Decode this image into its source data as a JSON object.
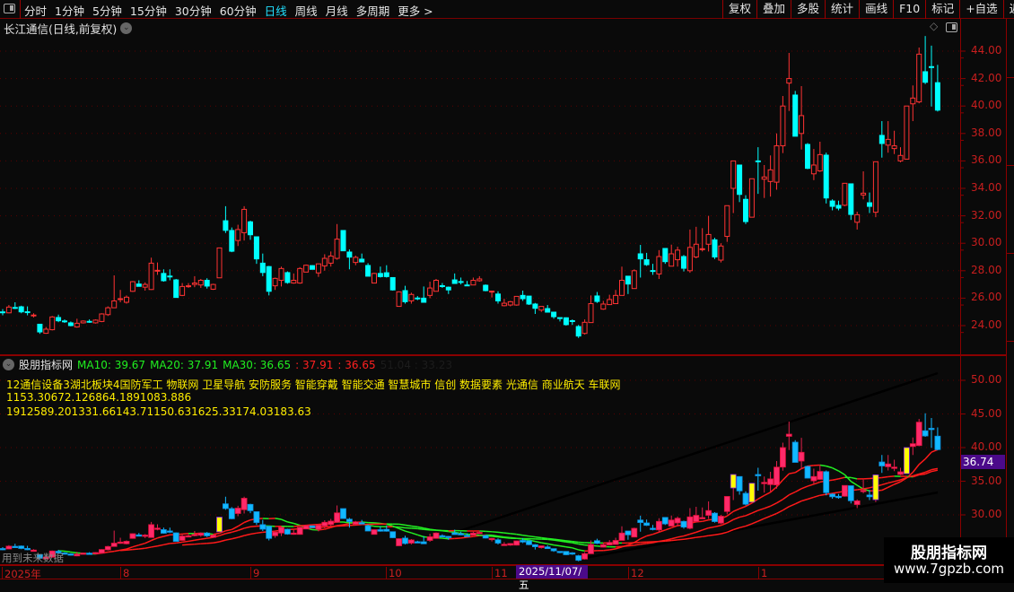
{
  "toolbar": {
    "tabs": [
      "分时",
      "1分钟",
      "5分钟",
      "15分钟",
      "30分钟",
      "60分钟",
      "日线",
      "周线",
      "月线",
      "多周期",
      "更多 >"
    ],
    "active_tab": "日线",
    "right_buttons": [
      "复权",
      "叠加",
      "多股",
      "统计",
      "画线",
      "F10",
      "标记",
      "+自选",
      "返回"
    ]
  },
  "main": {
    "title": "长江通信(日线,前复权)",
    "title_icon": "chevron-down-circle-icon",
    "corner_icons": [
      "diamond-icon",
      "panel-toggle-icon"
    ]
  },
  "sub": {
    "name": "股朋指标网",
    "ma10": "MA10: 39.67",
    "ma20": "MA20: 37.91",
    "ma30": "MA30: 36.65",
    "v1": ": 37.91",
    "v2": ": 36.65",
    "v3": "51.04 : 33.23",
    "line1": "12通信设备3湖北板块4国防军工 物联网 卫星导航 安防服务 智能穿戴 智能交通 智慧城市 信创 数据要素 光通信 商业航天 车联网",
    "line2": "1153.30672.126864.1891083.886",
    "line3": "1912589.201331.66143.71150.631625.33174.03183.63",
    "current_value": "36.74",
    "future_note": "用到未来数据"
  },
  "date_axis": {
    "labels": [
      "2025年",
      "8",
      "9",
      "10",
      "11",
      "12",
      "1"
    ],
    "cursor": "2025/11/07/五"
  },
  "watermark": {
    "title": "股朋指标网",
    "url": "www.7gpzb.com"
  },
  "colors": {
    "up": "#ff3333",
    "down": "#00ffff",
    "sub_up": "#ff2a6a",
    "sub_down": "#11b8ff",
    "highlight": "#ffff00",
    "ma": "#ff1a1a",
    "ma_falling": "#22ee22",
    "axis": "#c81e1e",
    "cursor_bg": "#4b0a8a"
  },
  "chart_data": [
    {
      "type": "candlestick",
      "title": "长江通信(日线,前复权)",
      "y_ticks": [
        "44.00",
        "42.00",
        "40.00",
        "38.00",
        "36.00",
        "34.00",
        "32.00",
        "30.00",
        "28.00",
        "26.00",
        "24.00"
      ],
      "ylim": [
        22.5,
        46
      ],
      "grid": true,
      "ohlc_fields": [
        "open",
        "high",
        "low",
        "close"
      ],
      "ohlc": [
        [
          25.0,
          25.2,
          24.75,
          24.99
        ],
        [
          24.93,
          25.5,
          24.9,
          25.35
        ],
        [
          25.32,
          25.7,
          25.2,
          25.3
        ],
        [
          25.37,
          25.45,
          24.9,
          25.0
        ],
        [
          25.01,
          25.4,
          24.75,
          25.0
        ],
        [
          24.75,
          24.9,
          24.6,
          24.77
        ],
        [
          24.1,
          24.1,
          23.4,
          23.54
        ],
        [
          23.44,
          23.9,
          23.4,
          23.74
        ],
        [
          23.7,
          24.7,
          23.65,
          24.63
        ],
        [
          24.59,
          24.8,
          24.25,
          24.35
        ],
        [
          24.34,
          24.45,
          24.2,
          24.33
        ],
        [
          24.2,
          24.3,
          23.95,
          24.0
        ],
        [
          23.9,
          24.5,
          23.85,
          24.17
        ],
        [
          24.2,
          24.38,
          24.15,
          24.33
        ],
        [
          24.31,
          24.45,
          24.2,
          24.3
        ],
        [
          24.2,
          24.45,
          24.15,
          24.4
        ],
        [
          24.3,
          24.9,
          24.25,
          24.85
        ],
        [
          24.8,
          25.4,
          24.7,
          25.3
        ],
        [
          25.3,
          27.66,
          25.3,
          25.8
        ],
        [
          25.95,
          26.6,
          25.7,
          25.96
        ],
        [
          25.7,
          26.2,
          25.6,
          26.07
        ],
        [
          26.5,
          27.25,
          26.45,
          27.2
        ],
        [
          27.03,
          27.3,
          26.86,
          26.86
        ],
        [
          26.8,
          27.15,
          26.55,
          27.0
        ],
        [
          26.63,
          28.95,
          26.6,
          28.55
        ],
        [
          28.02,
          28.6,
          27.7,
          28.03
        ],
        [
          27.8,
          28.1,
          27.2,
          27.27
        ],
        [
          27.61,
          28.1,
          27.3,
          27.6
        ],
        [
          27.33,
          27.4,
          26.05,
          26.05
        ],
        [
          26.2,
          27.1,
          26.15,
          26.85
        ],
        [
          26.88,
          27.1,
          26.75,
          26.9
        ],
        [
          27.0,
          27.6,
          26.8,
          27.1
        ],
        [
          26.96,
          27.4,
          26.75,
          27.3
        ],
        [
          27.3,
          27.45,
          26.7,
          26.88
        ],
        [
          26.65,
          27.05,
          26.6,
          27.0
        ],
        [
          27.48,
          29.66,
          27.48,
          29.66
        ],
        [
          31.64,
          32.7,
          30.75,
          30.94
        ],
        [
          30.93,
          31.15,
          29.35,
          29.42
        ],
        [
          30.2,
          31.35,
          29.8,
          31.0
        ],
        [
          30.77,
          32.7,
          30.2,
          32.47
        ],
        [
          31.56,
          31.65,
          30.25,
          30.62
        ],
        [
          30.47,
          30.47,
          28.5,
          28.86
        ],
        [
          28.55,
          29.25,
          27.6,
          27.87
        ],
        [
          28.3,
          28.35,
          26.2,
          26.5
        ],
        [
          26.9,
          27.5,
          26.6,
          27.44
        ],
        [
          27.3,
          28.3,
          26.85,
          28.16
        ],
        [
          27.86,
          27.95,
          27.05,
          27.14
        ],
        [
          27.1,
          27.8,
          27.05,
          27.3
        ],
        [
          27.1,
          28.26,
          27.05,
          28.16
        ],
        [
          27.9,
          28.45,
          27.9,
          28.4
        ],
        [
          28.37,
          28.4,
          28.1,
          28.1
        ],
        [
          27.84,
          28.5,
          27.55,
          28.5
        ],
        [
          28.35,
          29.2,
          28.0,
          28.9
        ],
        [
          28.55,
          29.4,
          28.3,
          29.07
        ],
        [
          28.9,
          31.4,
          28.8,
          30.3
        ],
        [
          30.93,
          30.93,
          29.45,
          29.45
        ],
        [
          29.36,
          29.55,
          28.1,
          28.99
        ],
        [
          28.6,
          29.1,
          28.4,
          28.97
        ],
        [
          28.84,
          29.25,
          28.6,
          28.64
        ],
        [
          28.38,
          28.55,
          27.6,
          27.6
        ],
        [
          27.1,
          27.85,
          27.1,
          27.8
        ],
        [
          27.8,
          28.3,
          27.5,
          27.57
        ],
        [
          27.85,
          28.4,
          27.5,
          27.57
        ],
        [
          27.5,
          27.5,
          26.55,
          26.6
        ],
        [
          25.4,
          26.5,
          25.4,
          26.46
        ],
        [
          26.55,
          26.9,
          25.6,
          25.74
        ],
        [
          25.8,
          26.4,
          25.6,
          26.27
        ],
        [
          26.01,
          26.15,
          25.85,
          26.0
        ],
        [
          26.0,
          26.85,
          25.7,
          25.7
        ],
        [
          26.2,
          27.2,
          26.0,
          26.74
        ],
        [
          26.5,
          27.4,
          26.5,
          27.3
        ],
        [
          26.91,
          27.1,
          26.75,
          26.9
        ],
        [
          26.8,
          26.85,
          26.3,
          26.6
        ],
        [
          27.33,
          27.8,
          27.07,
          27.07
        ],
        [
          27.21,
          27.5,
          27.0,
          27.2
        ],
        [
          26.96,
          27.25,
          26.9,
          26.95
        ],
        [
          26.96,
          27.5,
          26.96,
          27.3
        ],
        [
          27.27,
          27.6,
          27.2,
          27.4
        ],
        [
          26.94,
          27.0,
          26.5,
          26.55
        ],
        [
          26.5,
          26.55,
          26.05,
          26.51
        ],
        [
          26.3,
          26.5,
          25.6,
          25.8
        ],
        [
          25.45,
          25.95,
          25.4,
          25.63
        ],
        [
          25.5,
          25.8,
          25.4,
          25.74
        ],
        [
          25.5,
          26.15,
          25.45,
          26.13
        ],
        [
          26.2,
          26.55,
          25.8,
          25.96
        ],
        [
          26.15,
          26.15,
          25.5,
          25.57
        ],
        [
          25.57,
          25.65,
          24.85,
          25.26
        ],
        [
          25.13,
          25.4,
          25.0,
          25.4
        ],
        [
          25.24,
          25.5,
          24.95,
          24.98
        ],
        [
          24.98,
          25.0,
          24.5,
          24.65
        ],
        [
          24.58,
          24.6,
          24.3,
          24.57
        ],
        [
          24.57,
          24.6,
          24.0,
          24.07
        ],
        [
          24.36,
          24.45,
          24.05,
          24.35
        ],
        [
          23.93,
          24.05,
          23.1,
          23.24
        ],
        [
          23.43,
          24.45,
          23.35,
          24.24
        ],
        [
          24.22,
          26.2,
          24.2,
          25.6
        ],
        [
          26.16,
          26.45,
          25.65,
          25.76
        ],
        [
          25.2,
          25.8,
          25.15,
          25.57
        ],
        [
          25.53,
          26.25,
          25.5,
          25.9
        ],
        [
          25.6,
          26.6,
          25.6,
          26.2
        ],
        [
          26.2,
          28.3,
          26.2,
          27.3
        ],
        [
          27.6,
          27.6,
          26.3,
          27.03
        ],
        [
          26.7,
          28.1,
          26.7,
          28.0
        ],
        [
          29.23,
          29.88,
          27.5,
          28.86
        ],
        [
          28.8,
          29.3,
          28.35,
          28.44
        ],
        [
          28.01,
          28.5,
          27.7,
          28.0
        ],
        [
          27.76,
          29.5,
          27.4,
          29.03
        ],
        [
          29.62,
          29.65,
          28.5,
          28.66
        ],
        [
          28.33,
          29.9,
          28.33,
          29.23
        ],
        [
          28.8,
          29.75,
          28.3,
          29.5
        ],
        [
          29.03,
          29.15,
          27.95,
          28.18
        ],
        [
          28.0,
          31.0,
          27.85,
          29.7
        ],
        [
          29.0,
          31.2,
          28.9,
          29.93
        ],
        [
          29.59,
          31.1,
          29.4,
          29.6
        ],
        [
          29.93,
          32.0,
          29.4,
          30.64
        ],
        [
          30.25,
          30.4,
          28.85,
          29.0
        ],
        [
          28.77,
          30.0,
          28.6,
          29.8
        ],
        [
          30.5,
          32.74,
          30.1,
          32.74
        ],
        [
          34.0,
          36.0,
          32.2,
          36.0
        ],
        [
          35.7,
          35.7,
          33.0,
          33.56
        ],
        [
          33.2,
          33.5,
          31.4,
          31.58
        ],
        [
          31.9,
          34.7,
          31.9,
          34.7
        ],
        [
          36.0,
          37.0,
          33.6,
          35.99
        ],
        [
          34.67,
          35.7,
          33.3,
          34.83
        ],
        [
          34.5,
          36.4,
          33.4,
          35.35
        ],
        [
          34.45,
          38.0,
          33.9,
          37.1
        ],
        [
          37.1,
          40.73,
          36.57,
          40.0
        ],
        [
          41.67,
          43.87,
          39.64,
          42.0
        ],
        [
          40.8,
          41.1,
          37.8,
          37.8
        ],
        [
          38.0,
          41.45,
          36.83,
          39.3
        ],
        [
          37.2,
          37.3,
          35.4,
          35.46
        ],
        [
          35.06,
          36.87,
          34.6,
          35.7
        ],
        [
          35.27,
          37.4,
          35.2,
          36.46
        ],
        [
          36.42,
          36.6,
          32.9,
          33.3
        ],
        [
          33.08,
          33.2,
          32.4,
          32.69
        ],
        [
          32.76,
          33.1,
          32.4,
          32.56
        ],
        [
          32.77,
          34.37,
          32.7,
          34.37
        ],
        [
          34.33,
          34.33,
          31.7,
          32.1
        ],
        [
          31.53,
          32.3,
          31.0,
          32.08
        ],
        [
          33.52,
          35.24,
          33.2,
          33.65
        ],
        [
          32.95,
          33.7,
          32.2,
          32.69
        ],
        [
          32.26,
          35.94,
          31.9,
          35.94
        ],
        [
          37.86,
          38.9,
          36.24,
          37.27
        ],
        [
          37.15,
          38.9,
          36.6,
          37.57
        ],
        [
          36.9,
          38.2,
          36.5,
          37.1
        ],
        [
          36.0,
          37.0,
          35.9,
          36.4
        ],
        [
          36.13,
          40.0,
          36.13,
          40.0
        ],
        [
          40.16,
          41.5,
          38.9,
          40.58
        ],
        [
          40.3,
          44.26,
          40.2,
          43.78
        ],
        [
          42.5,
          45.1,
          41.6,
          41.73
        ],
        [
          42.87,
          44.4,
          39.96,
          42.86
        ],
        [
          41.7,
          43.0,
          39.6,
          39.7
        ]
      ]
    },
    {
      "type": "candlestick+line",
      "title": "股朋指标网",
      "y_ticks": [
        "50.00",
        "45.00",
        "40.00",
        "35.00",
        "30.00"
      ],
      "ylim": [
        22,
        52
      ],
      "series": [
        {
          "name": "MA10",
          "period": 10
        },
        {
          "name": "MA20",
          "period": 20
        },
        {
          "name": "MA30",
          "period": 30
        }
      ],
      "highlight_bars": [
        36,
        119,
        122,
        142,
        147
      ]
    }
  ]
}
